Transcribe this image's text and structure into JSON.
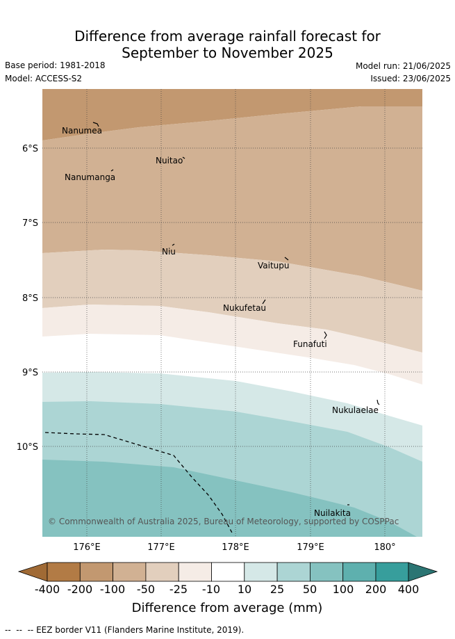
{
  "title": {
    "line1": "Difference from average rainfall forecast for",
    "line2": "September to November 2025"
  },
  "header": {
    "base_period": "Base period: 1981-2018",
    "model": "Model: ACCESS-S2",
    "model_run": "Model run: 21/06/2025",
    "issued": "Issued: 23/06/2025"
  },
  "map": {
    "lon_ticks": [
      "176°E",
      "177°E",
      "178°E",
      "179°E",
      "180°"
    ],
    "lat_ticks": [
      "6°S",
      "7°S",
      "8°S",
      "9°S",
      "10°S"
    ],
    "copyright": "© Commonwealth of Australia 2025, Bureau of Meteorology, supported by COSPPac",
    "places": [
      {
        "name": "Nanumea",
        "lon": 176.13,
        "lat": -5.69
      },
      {
        "name": "Nuitao",
        "lon": 177.34,
        "lat": -6.11
      },
      {
        "name": "Nanumanga",
        "lon": 176.32,
        "lat": -6.29
      },
      {
        "name": "Niu",
        "lon": 177.15,
        "lat": -7.29
      },
      {
        "name": "Vaitupu",
        "lon": 178.68,
        "lat": -7.48
      },
      {
        "name": "Nukufetau",
        "lon": 178.38,
        "lat": -8.03
      },
      {
        "name": "Funafuti",
        "lon": 179.2,
        "lat": -8.52
      },
      {
        "name": "Nukulaelae",
        "lon": 179.84,
        "lat": -9.38
      },
      {
        "name": "Nuilakita",
        "lon": 179.5,
        "lat": -10.78
      }
    ]
  },
  "colorbar": {
    "ticks": [
      "-400",
      "-200",
      "-100",
      "-50",
      "-25",
      "-10",
      "10",
      "25",
      "50",
      "100",
      "200",
      "400"
    ],
    "colors": [
      "#a06a35",
      "#b27b45",
      "#c29870",
      "#d1b193",
      "#e2cfbd",
      "#f5ece6",
      "#ffffff",
      "#d5e8e7",
      "#acd5d4",
      "#85c2c0",
      "#5eb0ae",
      "#379e9c",
      "#2b7573"
    ],
    "label": "Difference from average (mm)"
  },
  "footer": {
    "eez": "EEZ border V11 (Flanders Marine Institute, 2019)."
  }
}
